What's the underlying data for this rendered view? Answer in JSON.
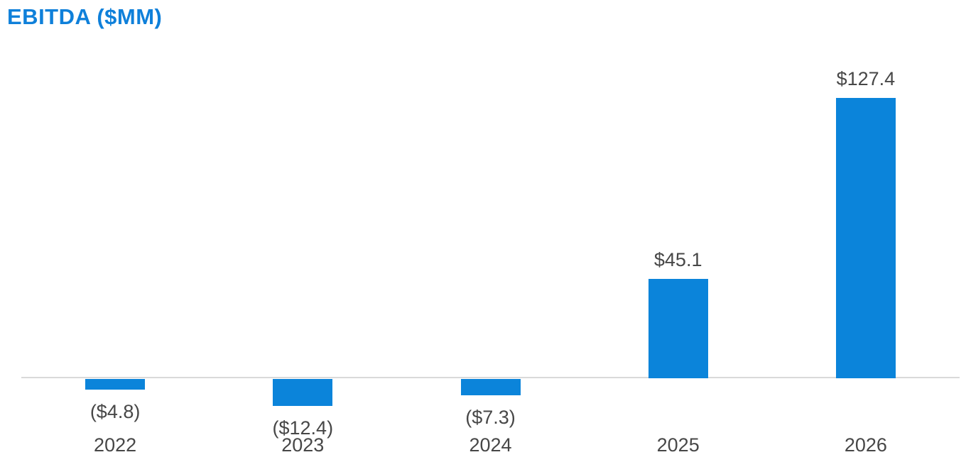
{
  "chart_data": {
    "type": "bar",
    "title": "EBITDA ($MM)",
    "categories": [
      "2022",
      "2023",
      "2024",
      "2025",
      "2026"
    ],
    "values": [
      -4.8,
      -12.4,
      -7.3,
      45.1,
      127.4
    ],
    "value_labels": [
      "($4.8)",
      "($12.4)",
      "($7.3)",
      "$45.1",
      "$127.4"
    ],
    "series_name": "EBITDA",
    "xlabel": "",
    "ylabel": "",
    "ylim": [
      -20,
      140
    ],
    "grid": "off",
    "legend_position": "none",
    "bar_color": "#0b84da",
    "title_color": "#0f80da",
    "label_color": "#474747",
    "axis_line_color": "#d9d9d9",
    "background_color": "#ffffff"
  }
}
